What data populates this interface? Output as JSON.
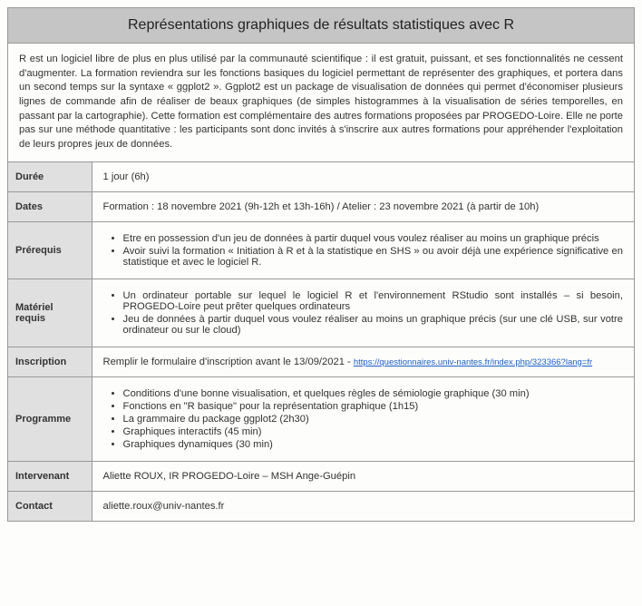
{
  "title": "Représentations graphiques de résultats statistiques avec R",
  "intro": "R est un logiciel libre de plus en plus utilisé par la communauté scientifique : il est gratuit, puissant, et ses fonctionnalités ne cessent d'augmenter. La formation reviendra sur les fonctions basiques du logiciel permettant de représenter des graphiques, et portera dans un second temps sur la syntaxe « ggplot2 ». Ggplot2 est un package de visualisation de données qui permet d'économiser plusieurs lignes de commande afin de réaliser de beaux graphiques (de simples histogrammes à la visualisation de séries temporelles, en passant par la cartographie). Cette formation est complémentaire des autres formations proposées par PROGEDO-Loire. Elle ne porte pas sur une méthode quantitative : les participants sont donc invités à s'inscrire aux autres formations pour appréhender l'exploitation de leurs propres jeux de données.",
  "rows": {
    "duree": {
      "label": "Durée",
      "value": "1 jour (6h)"
    },
    "dates": {
      "label": "Dates",
      "value": "Formation : 18 novembre 2021 (9h-12h et 13h-16h) / Atelier : 23 novembre 2021 (à partir de 10h)"
    },
    "prerequis": {
      "label": "Prérequis",
      "items": [
        "Etre en possession d'un jeu de données à partir duquel vous voulez réaliser au moins un graphique précis",
        "Avoir suivi la formation « Initiation à R et à la statistique en SHS » ou avoir déjà une expérience significative en statistique et avec le logiciel R."
      ]
    },
    "materiel": {
      "label": "Matériel requis",
      "items": [
        "Un ordinateur portable sur lequel le logiciel R et l'environnement RStudio sont installés – si besoin, PROGEDO-Loire peut prêter quelques ordinateurs",
        "Jeu de données à partir duquel vous voulez réaliser au moins un graphique précis (sur une clé USB, sur votre ordinateur ou sur le cloud)"
      ]
    },
    "inscription": {
      "label": "Inscription",
      "prefix": "Remplir le formulaire d'inscription avant le 13/09/2021 - ",
      "link": "https://questionnaires.univ-nantes.fr/index.php/323366?lang=fr"
    },
    "programme": {
      "label": "Programme",
      "items": [
        "Conditions d'une bonne visualisation, et quelques règles de sémiologie graphique (30 min)",
        "Fonctions en \"R basique\" pour la représentation graphique (1h15)",
        "La grammaire du package ggplot2 (2h30)",
        "Graphiques interactifs (45 min)",
        "Graphiques dynamiques (30 min)"
      ]
    },
    "intervenant": {
      "label": "Intervenant",
      "value": "Aliette ROUX, IR PROGEDO-Loire – MSH Ange-Guépin"
    },
    "contact": {
      "label": "Contact",
      "value": "aliette.roux@univ-nantes.fr"
    }
  }
}
